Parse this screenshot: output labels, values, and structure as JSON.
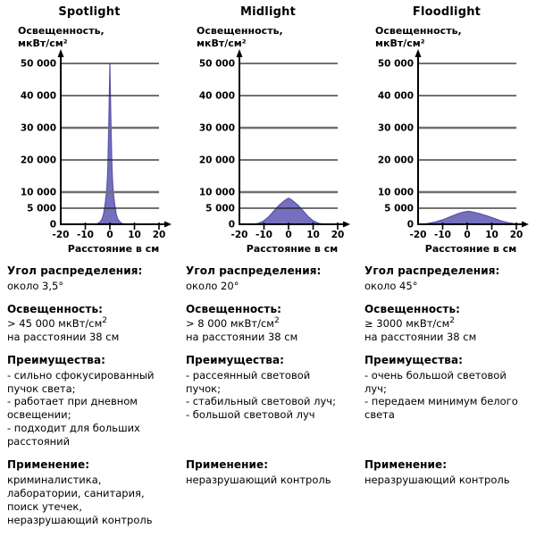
{
  "colors": {
    "curve_fill": "#7570bd",
    "curve_stroke": "#5a53a8",
    "grid_minor": "#1c1c1c",
    "grid_major": "#6f6f6f",
    "axis": "#000000",
    "text": "#000000"
  },
  "chart_data": [
    {
      "type": "area",
      "title": "Spotlight",
      "ylabel_lines": [
        "Освещенность,",
        "мкВт/см²"
      ],
      "xlabel": "Расстояние в см",
      "xlim": [
        -20,
        20
      ],
      "ylim": [
        0,
        50000
      ],
      "grid": true,
      "y_ticks": [
        {
          "value": 50000,
          "label": "50 000"
        },
        {
          "value": 40000,
          "label": "40 000"
        },
        {
          "value": 30000,
          "label": "30 000"
        },
        {
          "value": 20000,
          "label": "20 000"
        },
        {
          "value": 10000,
          "label": "10 000"
        },
        {
          "value": 5000,
          "label": "5 000"
        },
        {
          "value": 0,
          "label": "0"
        }
      ],
      "major_grid_values": [
        10000,
        30000
      ],
      "x_ticks": [
        {
          "value": -20,
          "label": "-20"
        },
        {
          "value": -10,
          "label": "-10"
        },
        {
          "value": 0,
          "label": "0"
        },
        {
          "value": 10,
          "label": "10"
        },
        {
          "value": 20,
          "label": "20"
        }
      ],
      "series": [
        {
          "name": "illuminance-distribution",
          "points": [
            [
              -5.5,
              0
            ],
            [
              -4.2,
              600
            ],
            [
              -3.2,
              1600
            ],
            [
              -2.6,
              3000
            ],
            [
              -2.2,
              5000
            ],
            [
              -1.8,
              7000
            ],
            [
              -1.3,
              10500
            ],
            [
              -1.0,
              14500
            ],
            [
              -0.8,
              19000
            ],
            [
              -0.6,
              25000
            ],
            [
              -0.4,
              33000
            ],
            [
              -0.2,
              42000
            ],
            [
              0,
              50000
            ],
            [
              0.2,
              42000
            ],
            [
              0.4,
              33000
            ],
            [
              0.6,
              25000
            ],
            [
              0.8,
              19000
            ],
            [
              1.0,
              14500
            ],
            [
              1.3,
              10500
            ],
            [
              1.8,
              7000
            ],
            [
              2.2,
              5000
            ],
            [
              2.6,
              3000
            ],
            [
              3.2,
              1600
            ],
            [
              4.2,
              600
            ],
            [
              5.5,
              0
            ]
          ]
        }
      ]
    },
    {
      "type": "area",
      "title": "Midlight",
      "ylabel_lines": [
        "Освещенность,",
        "мкВт/см²"
      ],
      "xlabel": "Расстояние в см",
      "xlim": [
        -20,
        20
      ],
      "ylim": [
        0,
        50000
      ],
      "grid": true,
      "y_ticks": [
        {
          "value": 50000,
          "label": "50 000"
        },
        {
          "value": 40000,
          "label": "40 000"
        },
        {
          "value": 30000,
          "label": "30 000"
        },
        {
          "value": 20000,
          "label": "20 000"
        },
        {
          "value": 10000,
          "label": "10 000"
        },
        {
          "value": 5000,
          "label": "5 000"
        },
        {
          "value": 0,
          "label": "0"
        }
      ],
      "major_grid_values": [
        10000,
        30000
      ],
      "x_ticks": [
        {
          "value": -20,
          "label": "-20"
        },
        {
          "value": -10,
          "label": "-10"
        },
        {
          "value": 0,
          "label": "0"
        },
        {
          "value": 10,
          "label": "10"
        },
        {
          "value": 20,
          "label": "20"
        }
      ],
      "series": [
        {
          "name": "illuminance-distribution",
          "points": [
            [
              -14,
              0
            ],
            [
              -12,
              350
            ],
            [
              -10,
              1100
            ],
            [
              -8,
              2400
            ],
            [
              -6,
              4100
            ],
            [
              -4,
              5800
            ],
            [
              -2,
              7100
            ],
            [
              -1,
              7700
            ],
            [
              0,
              8100
            ],
            [
              1,
              7700
            ],
            [
              2,
              7100
            ],
            [
              4,
              5800
            ],
            [
              6,
              4100
            ],
            [
              8,
              2400
            ],
            [
              10,
              1100
            ],
            [
              12,
              350
            ],
            [
              14,
              0
            ]
          ]
        }
      ]
    },
    {
      "type": "area",
      "title": "Floodlight",
      "ylabel_lines": [
        "Освещенность,",
        "мкВт/см²"
      ],
      "xlabel": "Расстояние в см",
      "xlim": [
        -20,
        20
      ],
      "ylim": [
        0,
        50000
      ],
      "grid": true,
      "y_ticks": [
        {
          "value": 50000,
          "label": "50 000"
        },
        {
          "value": 40000,
          "label": "40 000"
        },
        {
          "value": 30000,
          "label": "30 000"
        },
        {
          "value": 20000,
          "label": "20 000"
        },
        {
          "value": 10000,
          "label": "10 000"
        },
        {
          "value": 5000,
          "label": "5 000"
        },
        {
          "value": 0,
          "label": "0"
        }
      ],
      "major_grid_values": [
        10000,
        30000
      ],
      "x_ticks": [
        {
          "value": -20,
          "label": "-20"
        },
        {
          "value": -10,
          "label": "-10"
        },
        {
          "value": 0,
          "label": "0"
        },
        {
          "value": 10,
          "label": "10"
        },
        {
          "value": 20,
          "label": "20"
        }
      ],
      "series": [
        {
          "name": "illuminance-distribution",
          "points": [
            [
              -18,
              0
            ],
            [
              -16,
              250
            ],
            [
              -13,
              700
            ],
            [
              -10,
              1400
            ],
            [
              -7,
              2300
            ],
            [
              -4,
              3200
            ],
            [
              -2,
              3700
            ],
            [
              0,
              4000
            ],
            [
              1,
              4000
            ],
            [
              3,
              3700
            ],
            [
              5,
              3300
            ],
            [
              8,
              2600
            ],
            [
              11,
              1800
            ],
            [
              14,
              1000
            ],
            [
              17,
              450
            ],
            [
              19.5,
              150
            ],
            [
              20,
              120
            ]
          ]
        }
      ]
    }
  ],
  "columns": [
    {
      "angle_heading": "Угол распределения:",
      "angle_value": "около 3,5°",
      "illuminance_heading": "Освещенность:",
      "illuminance_value": "> 45 000 мкВт/см",
      "illuminance_sup": "2",
      "illuminance_distance": "на расстоянии 38 см",
      "advantages_heading": "Преимущества:",
      "advantages": [
        "- сильно сфокусированный пучок света;",
        "- работает при дневном освещении;",
        "- подходит для больших расстояний"
      ],
      "application_heading": "Применение:",
      "application_lines": [
        "криминалистика,",
        "лаборатории, санитария,",
        "поиск утечек,",
        "неразрушающий контроль"
      ]
    },
    {
      "angle_heading": "Угол распределения:",
      "angle_value": "около 20°",
      "illuminance_heading": "Освещенность:",
      "illuminance_value": "> 8 000 мкВт/см",
      "illuminance_sup": "2",
      "illuminance_distance": "на расстоянии 38 см",
      "advantages_heading": "Преимущества:",
      "advantages": [
        "- рассеянный световой пучок;",
        "- стабильный световой луч;",
        "- большой световой луч"
      ],
      "application_heading": "Применение:",
      "application_lines": [
        "неразрушающий контроль"
      ]
    },
    {
      "angle_heading": "Угол распределения:",
      "angle_value": "около 45°",
      "illuminance_heading": "Освещенность:",
      "illuminance_value": "≥ 3000 мкВт/см",
      "illuminance_sup": "2",
      "illuminance_distance": "на расстоянии 38 см",
      "advantages_heading": "Преимущества:",
      "advantages": [
        "- очень большой световой луч;",
        "- передаем минимум белого света"
      ],
      "application_heading": "Применение:",
      "application_lines": [
        "неразрушающий контроль"
      ]
    }
  ]
}
